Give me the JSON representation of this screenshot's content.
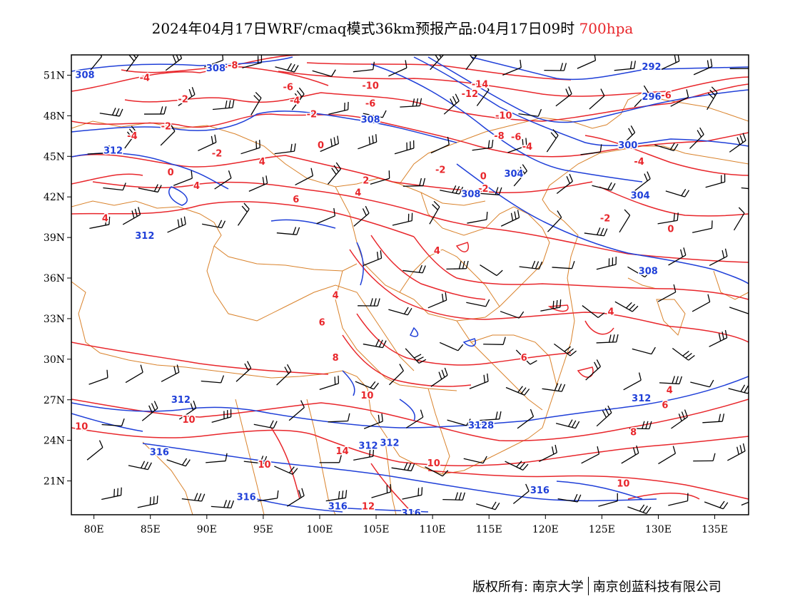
{
  "title": {
    "text": "2024年04月17日WRF/cmaq模式36km预报产品:04月17日09时",
    "level": "700hpa",
    "level_color": "#e8262b"
  },
  "footer": {
    "copyright": "版权所有: 南京大学",
    "company": "南京创蓝科技有限公司"
  },
  "map": {
    "lon_range": [
      78,
      138
    ],
    "lat_range": [
      18.5,
      52.5
    ],
    "lon_ticks": [
      "80E",
      "85E",
      "90E",
      "95E",
      "100E",
      "105E",
      "110E",
      "115E",
      "120E",
      "125E",
      "130E",
      "135E"
    ],
    "lat_ticks": [
      "51N",
      "48N",
      "45N",
      "42N",
      "39N",
      "36N",
      "33N",
      "30N",
      "27N",
      "24N",
      "21N"
    ],
    "colors": {
      "temperature_contour": "#e8262b",
      "height_contour": "#1f3fd8",
      "boundary": "#d9822b",
      "wind_barb": "#000000"
    },
    "temperature_labels": [
      {
        "text": "-8",
        "lon": 92.3,
        "lat": 51.7
      },
      {
        "text": "-4",
        "lon": 84.5,
        "lat": 50.8
      },
      {
        "text": "-2",
        "lon": 87.9,
        "lat": 49.2
      },
      {
        "text": "-6",
        "lon": 97.2,
        "lat": 50.1
      },
      {
        "text": "-4",
        "lon": 97.8,
        "lat": 49.1
      },
      {
        "text": "-10",
        "lon": 104.5,
        "lat": 50.2
      },
      {
        "text": "-14",
        "lon": 114.2,
        "lat": 50.3
      },
      {
        "text": "-12",
        "lon": 113.3,
        "lat": 49.6
      },
      {
        "text": "-6",
        "lon": 130.7,
        "lat": 49.5
      },
      {
        "text": "-6",
        "lon": 104.5,
        "lat": 48.9
      },
      {
        "text": "-10",
        "lon": 116.3,
        "lat": 48.0
      },
      {
        "text": "-2",
        "lon": 99.3,
        "lat": 48.1
      },
      {
        "text": "-2",
        "lon": 86.4,
        "lat": 47.2
      },
      {
        "text": "-4",
        "lon": 83.4,
        "lat": 46.5
      },
      {
        "text": "-8",
        "lon": 115.9,
        "lat": 46.5
      },
      {
        "text": "-6",
        "lon": 117.4,
        "lat": 46.4
      },
      {
        "text": "-4",
        "lon": 118.4,
        "lat": 45.7
      },
      {
        "text": "0",
        "lon": 100.1,
        "lat": 45.8
      },
      {
        "text": "-2",
        "lon": 90.9,
        "lat": 45.2
      },
      {
        "text": "4",
        "lon": 94.9,
        "lat": 44.6
      },
      {
        "text": "-4",
        "lon": 128.3,
        "lat": 44.6
      },
      {
        "text": "0",
        "lon": 86.8,
        "lat": 43.8
      },
      {
        "text": "-2",
        "lon": 110.7,
        "lat": 44.0
      },
      {
        "text": "0",
        "lon": 114.5,
        "lat": 43.5
      },
      {
        "text": "2",
        "lon": 104.1,
        "lat": 43.2
      },
      {
        "text": "4",
        "lon": 89.1,
        "lat": 42.8
      },
      {
        "text": "-2",
        "lon": 114.5,
        "lat": 42.6
      },
      {
        "text": "4",
        "lon": 103.4,
        "lat": 42.3
      },
      {
        "text": "6",
        "lon": 97.9,
        "lat": 41.8
      },
      {
        "text": "4",
        "lon": 81.0,
        "lat": 40.4
      },
      {
        "text": "-2",
        "lon": 125.3,
        "lat": 40.4
      },
      {
        "text": "0",
        "lon": 131.1,
        "lat": 39.6
      },
      {
        "text": "4",
        "lon": 110.4,
        "lat": 38.0
      },
      {
        "text": "4",
        "lon": 101.4,
        "lat": 34.7
      },
      {
        "text": "4",
        "lon": 125.8,
        "lat": 33.5
      },
      {
        "text": "6",
        "lon": 100.2,
        "lat": 32.7
      },
      {
        "text": "8",
        "lon": 101.4,
        "lat": 30.1
      },
      {
        "text": "6",
        "lon": 118.1,
        "lat": 30.1
      },
      {
        "text": "10",
        "lon": 104.2,
        "lat": 27.3
      },
      {
        "text": "4",
        "lon": 131.0,
        "lat": 27.7
      },
      {
        "text": "6",
        "lon": 130.6,
        "lat": 26.6
      },
      {
        "text": "10",
        "lon": 78.9,
        "lat": 25.0
      },
      {
        "text": "10",
        "lon": 88.4,
        "lat": 25.5
      },
      {
        "text": "8",
        "lon": 127.8,
        "lat": 24.6
      },
      {
        "text": "14",
        "lon": 102.0,
        "lat": 23.2
      },
      {
        "text": "10",
        "lon": 95.1,
        "lat": 22.2
      },
      {
        "text": "10",
        "lon": 110.1,
        "lat": 22.3
      },
      {
        "text": "10",
        "lon": 126.9,
        "lat": 20.8
      },
      {
        "text": "12",
        "lon": 104.3,
        "lat": 19.1
      }
    ],
    "height_labels": [
      {
        "text": "308",
        "lon": 79.2,
        "lat": 51.0
      },
      {
        "text": "308",
        "lon": 90.8,
        "lat": 51.5
      },
      {
        "text": "292",
        "lon": 129.4,
        "lat": 51.6
      },
      {
        "text": "296",
        "lon": 129.4,
        "lat": 49.4
      },
      {
        "text": "308",
        "lon": 104.5,
        "lat": 47.7
      },
      {
        "text": "300",
        "lon": 127.3,
        "lat": 45.8
      },
      {
        "text": "312",
        "lon": 81.7,
        "lat": 45.4
      },
      {
        "text": "304",
        "lon": 117.2,
        "lat": 43.7
      },
      {
        "text": "308",
        "lon": 113.4,
        "lat": 42.2
      },
      {
        "text": "304",
        "lon": 128.4,
        "lat": 42.1
      },
      {
        "text": "312",
        "lon": 84.5,
        "lat": 39.1
      },
      {
        "text": "308",
        "lon": 129.1,
        "lat": 36.5
      },
      {
        "text": "312",
        "lon": 87.7,
        "lat": 27.0
      },
      {
        "text": "312",
        "lon": 128.5,
        "lat": 27.1
      },
      {
        "text": "316",
        "lon": 85.8,
        "lat": 23.1
      },
      {
        "text": "312",
        "lon": 104.3,
        "lat": 23.6
      },
      {
        "text": "312",
        "lon": 106.2,
        "lat": 23.8
      },
      {
        "text": "3128",
        "lon": 114.3,
        "lat": 25.1
      },
      {
        "text": "316",
        "lon": 119.5,
        "lat": 20.3
      },
      {
        "text": "316",
        "lon": 93.5,
        "lat": 19.8
      },
      {
        "text": "316",
        "lon": 101.6,
        "lat": 19.1
      },
      {
        "text": "316",
        "lon": 108.1,
        "lat": 18.6
      }
    ]
  }
}
